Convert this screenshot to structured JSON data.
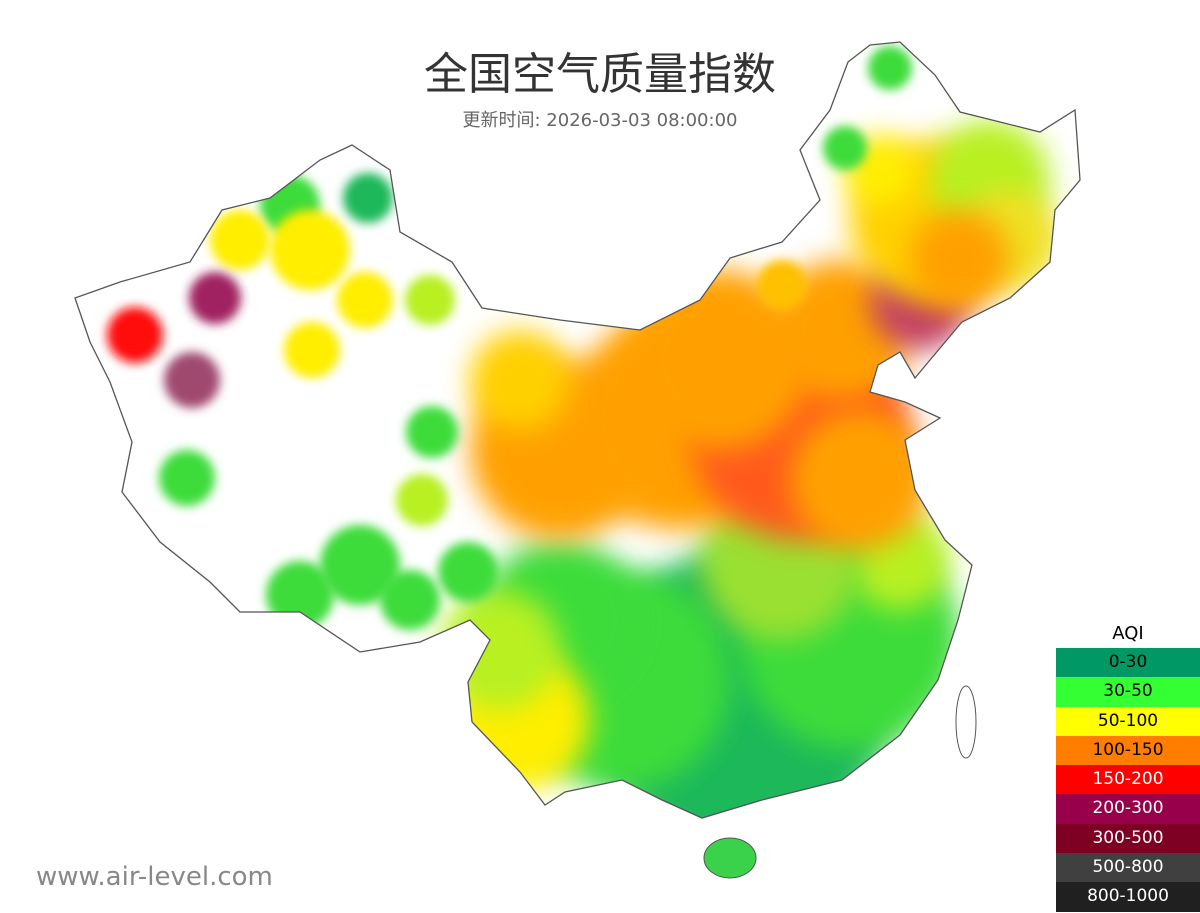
{
  "title": "全国空气质量指数",
  "subtitle": "更新时间: 2026-03-03 08:00:00",
  "watermark": "www.air-level.com",
  "legend": {
    "title": "AQI",
    "items": [
      {
        "label": "0-30",
        "color": "#009966",
        "text_color": "#000000"
      },
      {
        "label": "30-50",
        "color": "#33ff33",
        "text_color": "#000000"
      },
      {
        "label": "50-100",
        "color": "#ffff00",
        "text_color": "#000000"
      },
      {
        "label": "100-150",
        "color": "#ff7e00",
        "text_color": "#000000"
      },
      {
        "label": "150-200",
        "color": "#ff0000",
        "text_color": "#ffffff"
      },
      {
        "label": "200-300",
        "color": "#99004c",
        "text_color": "#ffffff"
      },
      {
        "label": "300-500",
        "color": "#7e0023",
        "text_color": "#ffffff"
      },
      {
        "label": "500-800",
        "color": "#404040",
        "text_color": "#ffffff"
      },
      {
        "label": "800-1000",
        "color": "#202020",
        "text_color": "#ffffff"
      }
    ]
  }
}
